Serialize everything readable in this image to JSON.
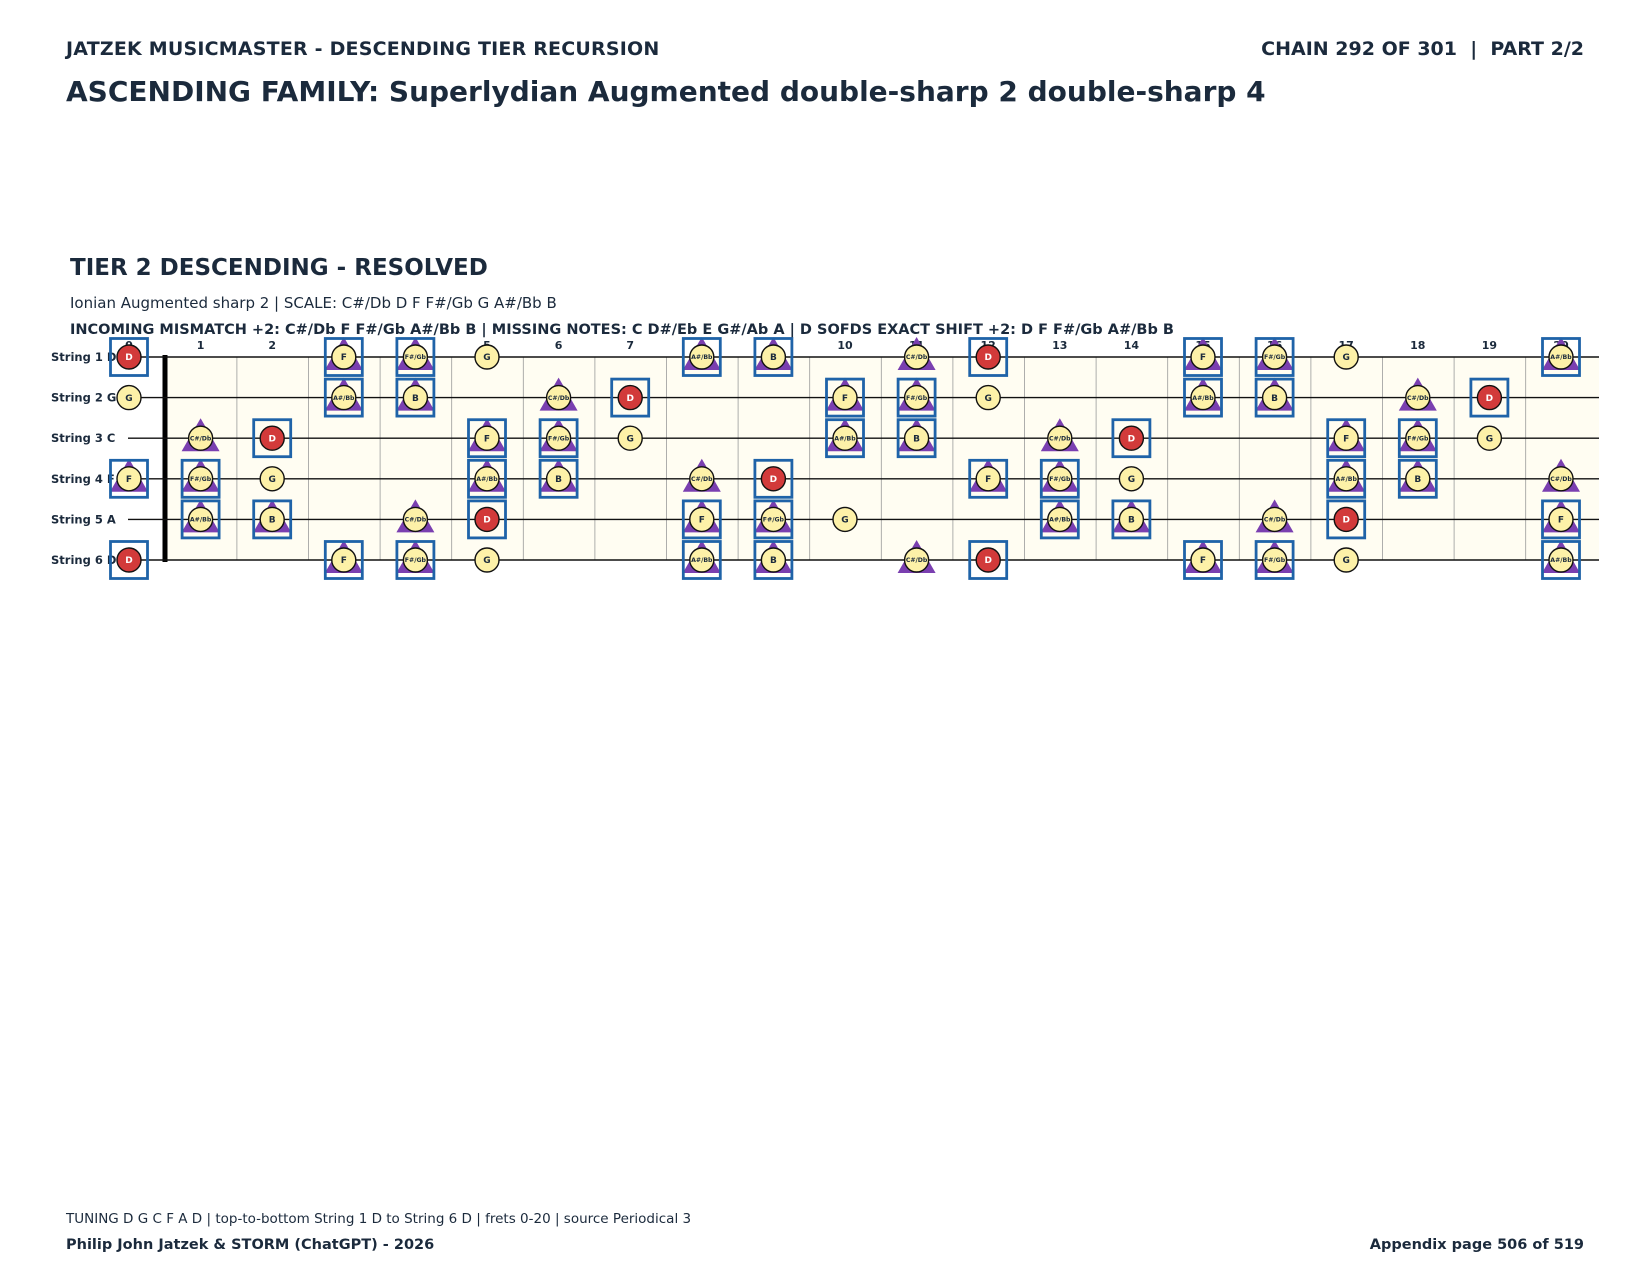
{
  "header": {
    "series_title": "JATZEK MUSICMASTER - DESCENDING TIER RECURSION",
    "chain_info": "CHAIN 292 OF 301  |  PART 2/2",
    "page_title": "ASCENDING FAMILY: Superlydian Augmented double-sharp 2 double-sharp 4"
  },
  "tier": {
    "heading": "TIER 2 DESCENDING - RESOLVED",
    "scale_line": "Ionian Augmented sharp 2  |  SCALE: C#/Db D F F#/Gb G A#/Bb B",
    "mismatch_line": "INCOMING MISMATCH +2: C#/Db F F#/Gb A#/Bb B  |  MISSING NOTES: C D#/Eb E G#/Ab A  |  D SOFDS EXACT SHIFT +2: D F F#/Gb A#/Bb B"
  },
  "fretboard": {
    "frets": [
      0,
      1,
      2,
      3,
      4,
      5,
      6,
      7,
      8,
      9,
      10,
      11,
      12,
      13,
      14,
      15,
      16,
      17,
      18,
      19,
      20
    ],
    "fret_labels": [
      "0",
      "1",
      "2",
      "3",
      "4",
      "5",
      "6",
      "7",
      "8",
      "9",
      "10",
      "11",
      "12",
      "13",
      "14",
      "15",
      "16",
      "17",
      "18",
      "19",
      "20"
    ],
    "strings": [
      {
        "label": "String 1 D",
        "notes": [
          {
            "fret": 0,
            "note": "D",
            "root": true,
            "box": true,
            "tri": false
          },
          {
            "fret": 3,
            "note": "F",
            "root": false,
            "box": true,
            "tri": true
          },
          {
            "fret": 4,
            "note": "F#/Gb",
            "root": false,
            "box": true,
            "tri": true
          },
          {
            "fret": 5,
            "note": "G",
            "root": false,
            "box": false,
            "tri": false
          },
          {
            "fret": 8,
            "note": "A#/Bb",
            "root": false,
            "box": true,
            "tri": true
          },
          {
            "fret": 9,
            "note": "B",
            "root": false,
            "box": true,
            "tri": true
          },
          {
            "fret": 11,
            "note": "C#/Db",
            "root": false,
            "box": false,
            "tri": true
          },
          {
            "fret": 12,
            "note": "D",
            "root": true,
            "box": true,
            "tri": false
          },
          {
            "fret": 15,
            "note": "F",
            "root": false,
            "box": true,
            "tri": true
          },
          {
            "fret": 16,
            "note": "F#/Gb",
            "root": false,
            "box": true,
            "tri": true
          },
          {
            "fret": 17,
            "note": "G",
            "root": false,
            "box": false,
            "tri": false
          },
          {
            "fret": 20,
            "note": "A#/Bb",
            "root": false,
            "box": true,
            "tri": true
          }
        ]
      },
      {
        "label": "String 2 G",
        "notes": [
          {
            "fret": 0,
            "note": "G",
            "root": false,
            "box": false,
            "tri": false
          },
          {
            "fret": 3,
            "note": "A#/Bb",
            "root": false,
            "box": true,
            "tri": true
          },
          {
            "fret": 4,
            "note": "B",
            "root": false,
            "box": true,
            "tri": true
          },
          {
            "fret": 6,
            "note": "C#/Db",
            "root": false,
            "box": false,
            "tri": true
          },
          {
            "fret": 7,
            "note": "D",
            "root": true,
            "box": true,
            "tri": false
          },
          {
            "fret": 10,
            "note": "F",
            "root": false,
            "box": true,
            "tri": true
          },
          {
            "fret": 11,
            "note": "F#/Gb",
            "root": false,
            "box": true,
            "tri": true
          },
          {
            "fret": 12,
            "note": "G",
            "root": false,
            "box": false,
            "tri": false
          },
          {
            "fret": 15,
            "note": "A#/Bb",
            "root": false,
            "box": true,
            "tri": true
          },
          {
            "fret": 16,
            "note": "B",
            "root": false,
            "box": true,
            "tri": true
          },
          {
            "fret": 18,
            "note": "C#/Db",
            "root": false,
            "box": false,
            "tri": true
          },
          {
            "fret": 19,
            "note": "D",
            "root": true,
            "box": true,
            "tri": false
          }
        ]
      },
      {
        "label": "String 3 C",
        "notes": [
          {
            "fret": 1,
            "note": "C#/Db",
            "root": false,
            "box": false,
            "tri": true
          },
          {
            "fret": 2,
            "note": "D",
            "root": true,
            "box": true,
            "tri": false
          },
          {
            "fret": 5,
            "note": "F",
            "root": false,
            "box": true,
            "tri": true
          },
          {
            "fret": 6,
            "note": "F#/Gb",
            "root": false,
            "box": true,
            "tri": true
          },
          {
            "fret": 7,
            "note": "G",
            "root": false,
            "box": false,
            "tri": false
          },
          {
            "fret": 10,
            "note": "A#/Bb",
            "root": false,
            "box": true,
            "tri": true
          },
          {
            "fret": 11,
            "note": "B",
            "root": false,
            "box": true,
            "tri": true
          },
          {
            "fret": 13,
            "note": "C#/Db",
            "root": false,
            "box": false,
            "tri": true
          },
          {
            "fret": 14,
            "note": "D",
            "root": true,
            "box": true,
            "tri": false
          },
          {
            "fret": 17,
            "note": "F",
            "root": false,
            "box": true,
            "tri": true
          },
          {
            "fret": 18,
            "note": "F#/Gb",
            "root": false,
            "box": true,
            "tri": true
          },
          {
            "fret": 19,
            "note": "G",
            "root": false,
            "box": false,
            "tri": false
          }
        ]
      },
      {
        "label": "String 4 F",
        "notes": [
          {
            "fret": 0,
            "note": "F",
            "root": false,
            "box": true,
            "tri": true
          },
          {
            "fret": 1,
            "note": "F#/Gb",
            "root": false,
            "box": true,
            "tri": true
          },
          {
            "fret": 2,
            "note": "G",
            "root": false,
            "box": false,
            "tri": false
          },
          {
            "fret": 5,
            "note": "A#/Bb",
            "root": false,
            "box": true,
            "tri": true
          },
          {
            "fret": 6,
            "note": "B",
            "root": false,
            "box": true,
            "tri": true
          },
          {
            "fret": 8,
            "note": "C#/Db",
            "root": false,
            "box": false,
            "tri": true
          },
          {
            "fret": 9,
            "note": "D",
            "root": true,
            "box": true,
            "tri": false
          },
          {
            "fret": 12,
            "note": "F",
            "root": false,
            "box": true,
            "tri": true
          },
          {
            "fret": 13,
            "note": "F#/Gb",
            "root": false,
            "box": true,
            "tri": true
          },
          {
            "fret": 14,
            "note": "G",
            "root": false,
            "box": false,
            "tri": false
          },
          {
            "fret": 17,
            "note": "A#/Bb",
            "root": false,
            "box": true,
            "tri": true
          },
          {
            "fret": 18,
            "note": "B",
            "root": false,
            "box": true,
            "tri": true
          },
          {
            "fret": 20,
            "note": "C#/Db",
            "root": false,
            "box": false,
            "tri": true
          }
        ]
      },
      {
        "label": "String 5 A",
        "notes": [
          {
            "fret": 1,
            "note": "A#/Bb",
            "root": false,
            "box": true,
            "tri": true
          },
          {
            "fret": 2,
            "note": "B",
            "root": false,
            "box": true,
            "tri": true
          },
          {
            "fret": 4,
            "note": "C#/Db",
            "root": false,
            "box": false,
            "tri": true
          },
          {
            "fret": 5,
            "note": "D",
            "root": true,
            "box": true,
            "tri": false
          },
          {
            "fret": 8,
            "note": "F",
            "root": false,
            "box": true,
            "tri": true
          },
          {
            "fret": 9,
            "note": "F#/Gb",
            "root": false,
            "box": true,
            "tri": true
          },
          {
            "fret": 10,
            "note": "G",
            "root": false,
            "box": false,
            "tri": false
          },
          {
            "fret": 13,
            "note": "A#/Bb",
            "root": false,
            "box": true,
            "tri": true
          },
          {
            "fret": 14,
            "note": "B",
            "root": false,
            "box": true,
            "tri": true
          },
          {
            "fret": 16,
            "note": "C#/Db",
            "root": false,
            "box": false,
            "tri": true
          },
          {
            "fret": 17,
            "note": "D",
            "root": true,
            "box": true,
            "tri": false
          },
          {
            "fret": 20,
            "note": "F",
            "root": false,
            "box": true,
            "tri": true
          }
        ]
      },
      {
        "label": "String 6 D",
        "notes": [
          {
            "fret": 0,
            "note": "D",
            "root": true,
            "box": true,
            "tri": false
          },
          {
            "fret": 3,
            "note": "F",
            "root": false,
            "box": true,
            "tri": true
          },
          {
            "fret": 4,
            "note": "F#/Gb",
            "root": false,
            "box": true,
            "tri": true
          },
          {
            "fret": 5,
            "note": "G",
            "root": false,
            "box": false,
            "tri": false
          },
          {
            "fret": 8,
            "note": "A#/Bb",
            "root": false,
            "box": true,
            "tri": true
          },
          {
            "fret": 9,
            "note": "B",
            "root": false,
            "box": true,
            "tri": true
          },
          {
            "fret": 11,
            "note": "C#/Db",
            "root": false,
            "box": false,
            "tri": true
          },
          {
            "fret": 12,
            "note": "D",
            "root": true,
            "box": true,
            "tri": false
          },
          {
            "fret": 15,
            "note": "F",
            "root": false,
            "box": true,
            "tri": true
          },
          {
            "fret": 16,
            "note": "F#/Gb",
            "root": false,
            "box": true,
            "tri": true
          },
          {
            "fret": 17,
            "note": "G",
            "root": false,
            "box": false,
            "tri": false
          },
          {
            "fret": 20,
            "note": "A#/Bb",
            "root": false,
            "box": true,
            "tri": true
          }
        ]
      }
    ],
    "colors": {
      "board_bg": "#fffdf2",
      "note_fill": "#fdf1a8",
      "root_fill": "#d23a3a",
      "box_stroke": "#1f63a8",
      "triangle_fill": "#7a3fb0",
      "text": "#1b2a3c"
    }
  },
  "footer": {
    "tuning_line": "TUNING D G C F A D | top-to-bottom String 1 D to String 6 D | frets 0-20 | source Periodical 3",
    "credit": "Philip John Jatzek & STORM (ChatGPT) - 2026",
    "page_number": "Appendix page 506 of 519"
  }
}
